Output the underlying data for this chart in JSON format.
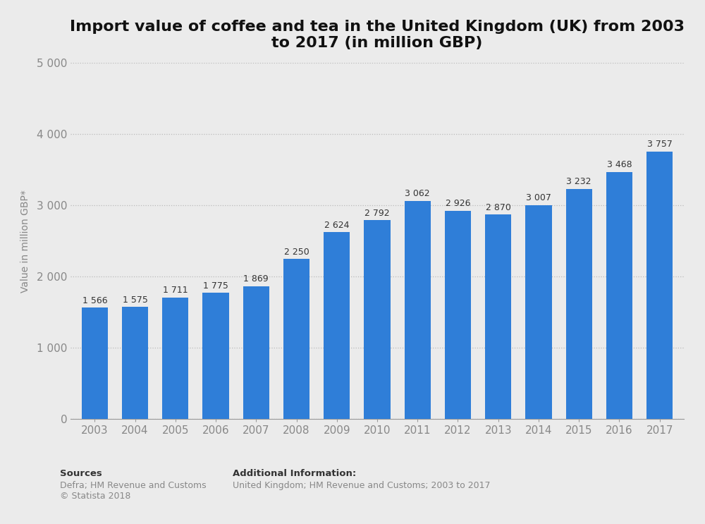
{
  "title": "Import value of coffee and tea in the United Kingdom (UK) from 2003\nto 2017 (in million GBP)",
  "years": [
    2003,
    2004,
    2005,
    2006,
    2007,
    2008,
    2009,
    2010,
    2011,
    2012,
    2013,
    2014,
    2015,
    2016,
    2017
  ],
  "values": [
    1566,
    1575,
    1711,
    1775,
    1869,
    2250,
    2624,
    2792,
    3062,
    2926,
    2870,
    3007,
    3232,
    3468,
    3757
  ],
  "bar_color": "#2f7ed8",
  "background_color": "#ebebeb",
  "ylabel": "Value in million GBP*",
  "ylim": [
    0,
    5000
  ],
  "yticks": [
    0,
    1000,
    2000,
    3000,
    4000,
    5000
  ],
  "ytick_labels": [
    "0",
    "1 000",
    "2 000",
    "3 000",
    "4 000",
    "5 000"
  ],
  "title_fontsize": 16,
  "bar_label_fontsize": 9,
  "tick_fontsize": 11,
  "ylabel_fontsize": 10,
  "sources_label": "Sources",
  "sources_body": "Defra; HM Revenue and Customs\n© Statista 2018",
  "additional_label": "Additional Information:",
  "additional_body": "United Kingdom; HM Revenue and Customs; 2003 to 2017",
  "value_labels": [
    "1 566",
    "1 575",
    "1 711",
    "1 775",
    "1 869",
    "2 250",
    "2 624",
    "2 792",
    "3 062",
    "2 926",
    "2 870",
    "3 007",
    "3 232",
    "3 468",
    "3 757"
  ]
}
